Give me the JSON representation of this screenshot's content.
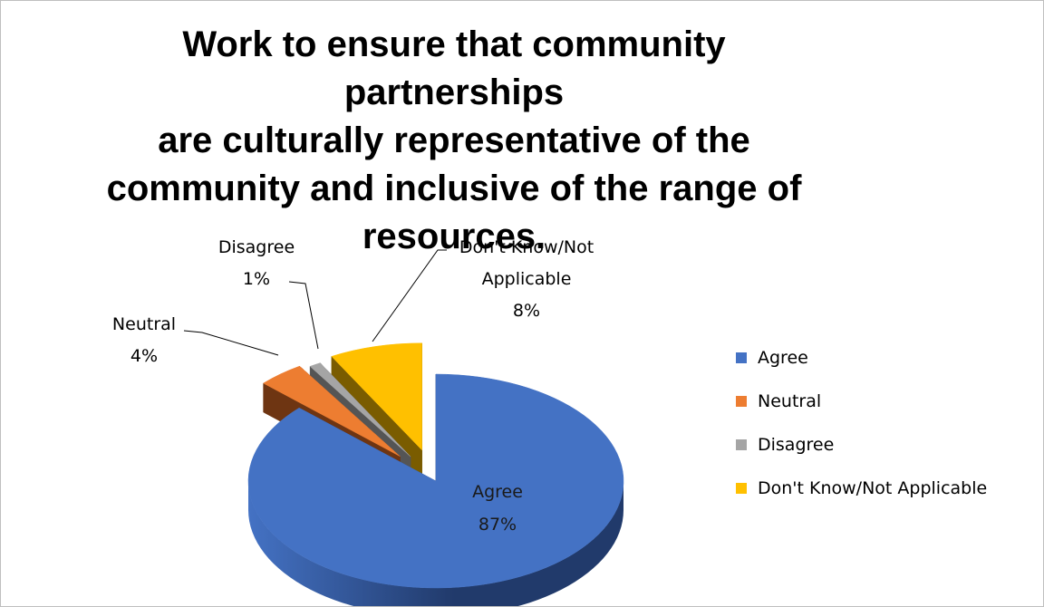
{
  "chart_data": {
    "type": "pie",
    "title": "Work to ensure that community partnerships\nare culturally representative of the\ncommunity and inclusive of the range of\nresources.",
    "categories": [
      "Agree",
      "Neutral",
      "Disagree",
      "Don't Know/Not Applicable"
    ],
    "values": [
      87,
      4,
      1,
      8
    ],
    "data_labels": [
      {
        "category": "Agree",
        "value": "87%"
      },
      {
        "category": "Neutral",
        "value": "4%"
      },
      {
        "category": "Disagree",
        "value": "1%"
      },
      {
        "category": "Don't Know/Not Applicable",
        "value": "8%"
      }
    ],
    "colors": [
      "#4472c4",
      "#ed7d31",
      "#a5a5a5",
      "#ffc000"
    ],
    "side_colors": [
      "#213a6b",
      "#6e3512",
      "#555555",
      "#7a5c00"
    ],
    "legend_position": "right",
    "legend": [
      "Agree",
      "Neutral",
      "Disagree",
      "Don't Know/Not Applicable"
    ],
    "style": "3d-exploded"
  }
}
